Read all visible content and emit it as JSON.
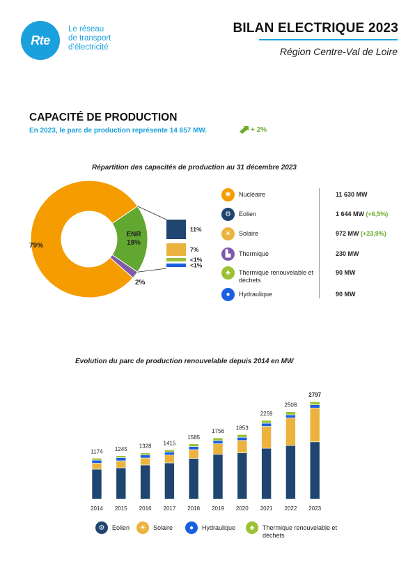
{
  "header": {
    "logo_text": "Rte",
    "logo_tagline": [
      "Le réseau",
      "de transport",
      "d’électricité"
    ],
    "title": "BILAN ELECTRIQUE 2023",
    "subtitle": "Région Centre-Val de Loire"
  },
  "section": {
    "title": "CAPACITÉ DE PRODUCTION",
    "summary": "En 2023, le parc de production représente 14 657 MW.",
    "growth": "+ 2%"
  },
  "colors": {
    "nucleaire": "#f59c00",
    "enr": "#62a830",
    "thermique": "#7e5aa8",
    "eolien": "#1f4570",
    "solaire": "#ebb33e",
    "hydraulique": "#1a5fe0",
    "thermique_renouvelable": "#9bc134",
    "accent": "#1aa0dc"
  },
  "legend": [
    {
      "icon": "nuclear-icon",
      "color": "#f59c00",
      "label": "Nucléaire",
      "value": "11 630 MW",
      "delta": ""
    },
    {
      "icon": "wind-turbine-icon",
      "color": "#1f4570",
      "label": "Eolien",
      "value": "1 644 MW",
      "delta": "(+6,5%)"
    },
    {
      "icon": "sun-icon",
      "color": "#ebb33e",
      "label": "Solaire",
      "value": "972 MW",
      "delta": "(+23,9%)"
    },
    {
      "icon": "factory-icon",
      "color": "#7e5aa8",
      "label": "Thermique",
      "value": "230 MW",
      "delta": ""
    },
    {
      "icon": "biomass-icon",
      "color": "#9bc134",
      "label": "Thermique renouvelable et déchets",
      "value": "90 MW",
      "delta": ""
    },
    {
      "icon": "water-drop-icon",
      "color": "#1a5fe0",
      "label": "Hydraulique",
      "value": "90 MW",
      "delta": ""
    }
  ],
  "bottom_legend": [
    {
      "icon": "wind-turbine-icon",
      "color": "#1f4570",
      "label": "Eolien"
    },
    {
      "icon": "sun-icon",
      "color": "#ebb33e",
      "label": "Solaire"
    },
    {
      "icon": "water-drop-icon",
      "color": "#1a5fe0",
      "label": "Hydraulique"
    },
    {
      "icon": "biomass-icon",
      "color": "#9bc134",
      "label": "Thermique renouvelable et déchets"
    }
  ],
  "chart_data": [
    {
      "type": "pie",
      "title": "Répartition des capacités de production au 31 décembre 2023",
      "slices": [
        {
          "name": "Nucléaire",
          "value": 79,
          "label": "79%"
        },
        {
          "name": "ENR",
          "value": 19,
          "label": "ENR\n19%"
        },
        {
          "name": "Thermique",
          "value": 2,
          "label": "2%"
        }
      ],
      "enr_breakdown": [
        {
          "name": "Eolien",
          "value": 11,
          "label": "11%"
        },
        {
          "name": "Solaire",
          "value": 7,
          "label": "7%"
        },
        {
          "name": "Thermique renouvelable et déchets",
          "value": 0.6,
          "label": "<1%"
        },
        {
          "name": "Hydraulique",
          "value": 0.6,
          "label": "<1%"
        }
      ]
    },
    {
      "type": "bar",
      "stacked": true,
      "title": "Evolution du parc de production renouvelable depuis 2014 en MW",
      "categories": [
        "2014",
        "2015",
        "2016",
        "2017",
        "2018",
        "2019",
        "2020",
        "2021",
        "2022",
        "2023"
      ],
      "totals": [
        1174,
        1245,
        1328,
        1415,
        1585,
        1756,
        1853,
        2259,
        2508,
        2797
      ],
      "series": [
        {
          "name": "Eolien",
          "values": [
            860,
            900,
            980,
            1040,
            1170,
            1290,
            1330,
            1460,
            1540,
            1644
          ]
        },
        {
          "name": "Solaire",
          "values": [
            170,
            200,
            200,
            225,
            250,
            300,
            355,
            630,
            790,
            972
          ]
        },
        {
          "name": "Hydraulique",
          "values": [
            90,
            90,
            90,
            90,
            90,
            90,
            90,
            90,
            90,
            90
          ]
        },
        {
          "name": "Thermique renouvelable et déchets",
          "values": [
            54,
            55,
            58,
            60,
            75,
            76,
            78,
            79,
            88,
            90
          ]
        }
      ],
      "ylim": [
        0,
        3000
      ],
      "grid": false
    }
  ]
}
